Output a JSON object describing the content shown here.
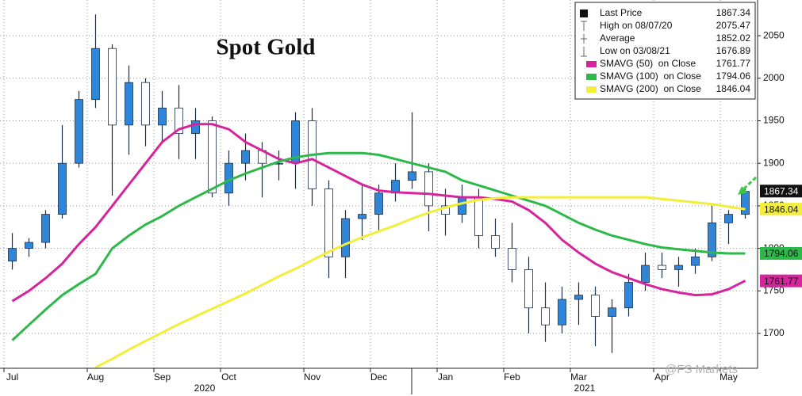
{
  "chart_data": {
    "type": "candlestick",
    "title": "Spot Gold",
    "categories": [
      "Jul",
      null,
      null,
      null,
      null,
      "Aug",
      null,
      null,
      null,
      "Sep",
      null,
      null,
      null,
      "Oct",
      null,
      null,
      null,
      null,
      "Nov",
      null,
      null,
      null,
      "Dec",
      null,
      null,
      null,
      "Jan",
      null,
      null,
      null,
      "Feb",
      null,
      null,
      null,
      "Mar",
      null,
      null,
      null,
      null,
      "Apr",
      null,
      null,
      null,
      "May",
      null
    ],
    "years": [
      "2020",
      "2021"
    ],
    "ohlc": {
      "name": "Last Price",
      "up_color": "#2f86d8",
      "down_color": "#ffffff",
      "wick_color": "#1d2d44",
      "open": [
        1785,
        1800,
        1807,
        1840,
        1900,
        1975,
        2035,
        1945,
        1995,
        1945,
        1965,
        1935,
        1950,
        1865,
        1900,
        1915,
        1900,
        1900,
        1950,
        1870,
        1790,
        1835,
        1840,
        1865,
        1880,
        1890,
        1850,
        1840,
        1860,
        1815,
        1800,
        1775,
        1730,
        1710,
        1740,
        1745,
        1720,
        1730,
        1760,
        1780,
        1775,
        1780,
        1790,
        1830,
        1840
      ],
      "high": [
        1818,
        1812,
        1845,
        1945,
        1985,
        2075,
        2040,
        2015,
        2000,
        1985,
        1992,
        1965,
        1955,
        1915,
        1935,
        1925,
        1915,
        1960,
        1965,
        1880,
        1845,
        1875,
        1875,
        1900,
        1960,
        1900,
        1870,
        1875,
        1870,
        1835,
        1830,
        1790,
        1760,
        1755,
        1760,
        1755,
        1740,
        1770,
        1795,
        1795,
        1790,
        1800,
        1850,
        1845,
        1870
      ],
      "low": [
        1775,
        1790,
        1800,
        1835,
        1895,
        1965,
        1862,
        1910,
        1920,
        1925,
        1905,
        1905,
        1860,
        1850,
        1880,
        1860,
        1880,
        1870,
        1850,
        1765,
        1765,
        1810,
        1820,
        1855,
        1870,
        1820,
        1815,
        1830,
        1800,
        1790,
        1760,
        1700,
        1690,
        1700,
        1710,
        1685,
        1677,
        1720,
        1750,
        1765,
        1755,
        1770,
        1785,
        1805,
        1835
      ],
      "close": [
        1800,
        1807,
        1840,
        1900,
        1975,
        2035,
        1945,
        1995,
        1945,
        1965,
        1935,
        1950,
        1865,
        1900,
        1915,
        1900,
        1900,
        1950,
        1870,
        1790,
        1835,
        1840,
        1865,
        1880,
        1890,
        1850,
        1840,
        1860,
        1815,
        1800,
        1775,
        1730,
        1710,
        1740,
        1745,
        1720,
        1730,
        1760,
        1780,
        1775,
        1780,
        1790,
        1830,
        1840,
        1867
      ]
    },
    "series": [
      {
        "name": "SMAVG (50)  on Close",
        "color": "#d6249c",
        "legend_value": 1761.77,
        "values": [
          1738,
          1750,
          1765,
          1782,
          1805,
          1825,
          1850,
          1875,
          1900,
          1925,
          1940,
          1946,
          1946,
          1940,
          1925,
          1915,
          1905,
          1900,
          1905,
          1895,
          1885,
          1875,
          1868,
          1866,
          1865,
          1864,
          1862,
          1860,
          1860,
          1858,
          1855,
          1845,
          1830,
          1810,
          1795,
          1782,
          1772,
          1765,
          1758,
          1752,
          1748,
          1745,
          1746,
          1752,
          1762
        ]
      },
      {
        "name": "SMAVG (100)  on Close",
        "color": "#2eb84a",
        "legend_value": 1794.06,
        "values": [
          1692,
          1710,
          1728,
          1745,
          1758,
          1770,
          1800,
          1815,
          1828,
          1838,
          1850,
          1860,
          1870,
          1880,
          1888,
          1895,
          1902,
          1907,
          1910,
          1912,
          1912,
          1912,
          1910,
          1905,
          1900,
          1895,
          1890,
          1880,
          1874,
          1868,
          1862,
          1856,
          1850,
          1840,
          1830,
          1822,
          1815,
          1810,
          1805,
          1801,
          1799,
          1797,
          1795,
          1794,
          1794
        ]
      },
      {
        "name": "SMAVG (200)  on Close",
        "color": "#f2ee3a",
        "legend_value": 1846.04,
        "values": [
          null,
          null,
          null,
          null,
          null,
          1660,
          1670,
          1681,
          1691,
          1701,
          1711,
          1720,
          1729,
          1738,
          1747,
          1757,
          1767,
          1776,
          1786,
          1796,
          1805,
          1813,
          1820,
          1827,
          1835,
          1842,
          1848,
          1853,
          1857,
          1859,
          1860,
          1860,
          1860,
          1860,
          1860,
          1860,
          1860,
          1860,
          1860,
          1858,
          1856,
          1854,
          1852,
          1849,
          1846
        ]
      }
    ],
    "legend_rows": [
      {
        "label": "Last Price",
        "value": 1867.34
      },
      {
        "label": "High on 08/07/20",
        "value": 2075.47
      },
      {
        "label": "Average",
        "value": 1852.02
      },
      {
        "label": "Low on 03/08/21",
        "value": 1676.89
      }
    ],
    "ylim": [
      1659,
      2092
    ],
    "yticks": [
      1700,
      1750,
      1800,
      1850,
      1900,
      1950,
      2000,
      2050
    ],
    "grid": true,
    "watermark": "@FS Markets"
  }
}
